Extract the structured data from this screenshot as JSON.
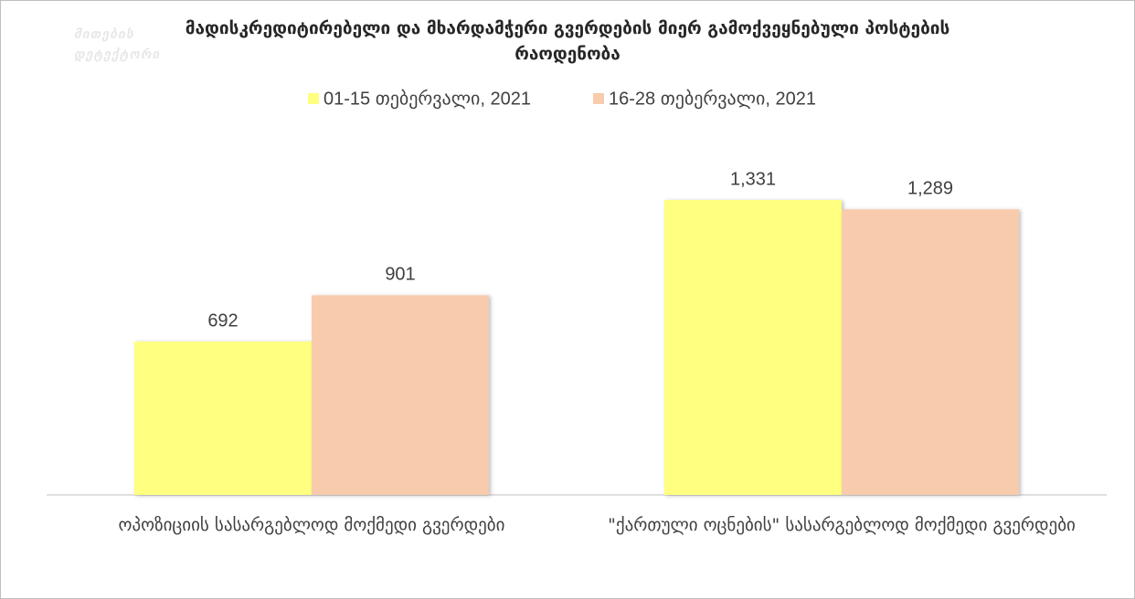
{
  "logo": "მითების დეტექტორი",
  "chart_data": {
    "type": "bar",
    "title": "მადისკრედიტირებელი და მხარდამჭერი გვერდების მიერ გამოქვეყნებული პოსტების რაოდენობა",
    "categories": [
      "ოპოზიციის სასარგებლოდ მოქმედი გვერდები",
      "\"ქართული ოცნების\" სასარგებლოდ მოქმედი გვერდები"
    ],
    "series": [
      {
        "name": "01-15 თებერვალი, 2021",
        "color": "#ffff80",
        "values": [
          692,
          1331
        ],
        "value_labels": [
          "692",
          "1,331"
        ]
      },
      {
        "name": "16-28 თებერვალი, 2021",
        "color": "#f8cbad",
        "values": [
          901,
          1289
        ],
        "value_labels": [
          "901",
          "1,289"
        ]
      }
    ],
    "legend": "top"
  }
}
